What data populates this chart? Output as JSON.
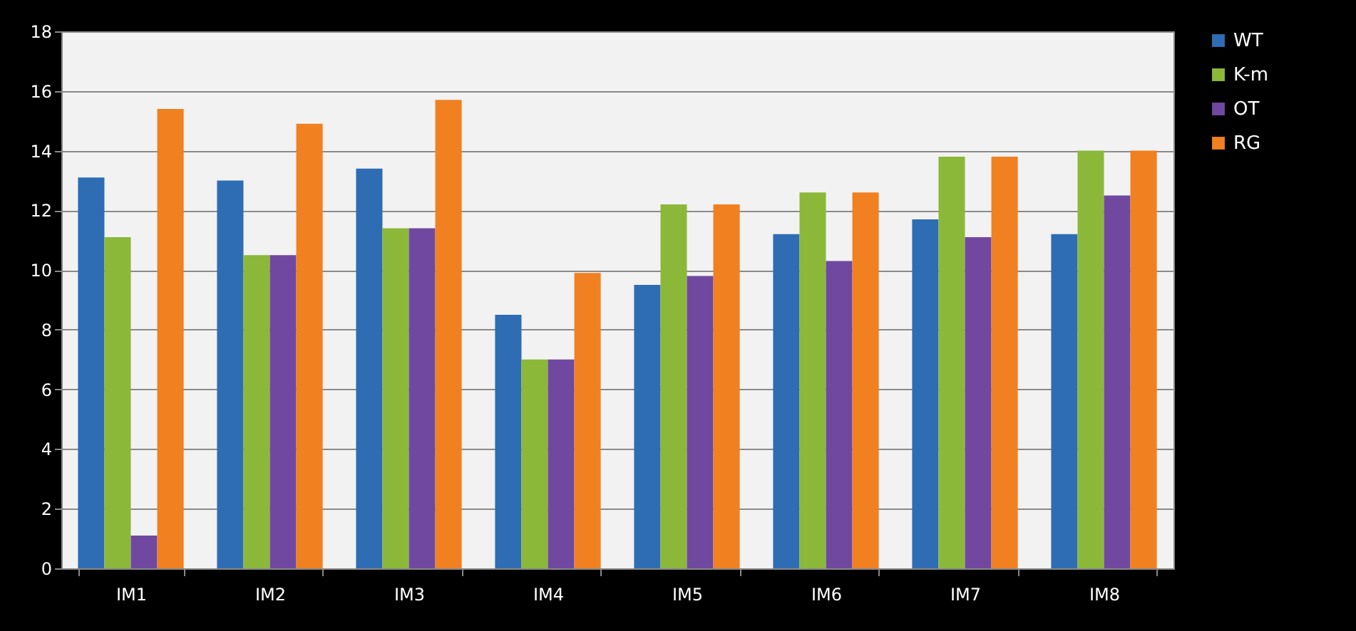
{
  "chart_data": {
    "type": "bar",
    "categories": [
      "IM1",
      "IM2",
      "IM3",
      "IM4",
      "IM5",
      "IM6",
      "IM7",
      "IM8"
    ],
    "series": [
      {
        "name": "WT",
        "color": "#2e6db4",
        "values": [
          13.1,
          13.0,
          13.4,
          8.5,
          9.5,
          11.2,
          11.7,
          11.2
        ]
      },
      {
        "name": "K-m",
        "color": "#8cb83a",
        "values": [
          11.1,
          10.5,
          11.4,
          7.0,
          12.2,
          12.6,
          13.8,
          14.0
        ]
      },
      {
        "name": "OT",
        "color": "#7048a0",
        "values": [
          1.1,
          10.5,
          11.4,
          7.0,
          9.8,
          10.3,
          11.1,
          12.5
        ]
      },
      {
        "name": "RG",
        "color": "#f08020",
        "values": [
          15.4,
          14.9,
          15.7,
          9.9,
          12.2,
          12.6,
          13.8,
          14.0
        ]
      }
    ],
    "ylim": [
      0,
      18
    ],
    "yticks": [
      0,
      2,
      4,
      6,
      8,
      10,
      12,
      14,
      16,
      18
    ],
    "grid": "y",
    "legend": "right"
  }
}
